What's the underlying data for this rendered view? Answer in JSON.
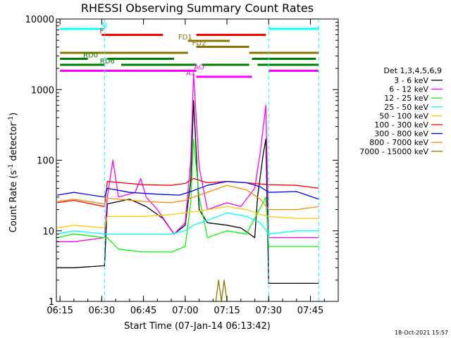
{
  "chart_data": {
    "type": "line",
    "title": "RHESSI Observing Summary Count Rates",
    "xlabel": "Start Time (07-Jan-14 06:13:42)",
    "ylabel_main": "Count Rate (s",
    "ylabel_sup1": "-1",
    "ylabel_mid": " detector",
    "ylabel_sup2": "-1",
    "ylabel_end": ")",
    "y_scale": "log",
    "ylim": [
      1,
      10000
    ],
    "xlim_minutes": [
      "06:13:42",
      "07:55:00"
    ],
    "x_ticks": [
      "06:15",
      "06:30",
      "06:45",
      "07:00",
      "07:15",
      "07:30",
      "07:45"
    ],
    "y_ticks": [
      "1",
      "10",
      "100",
      "1000",
      "10000"
    ],
    "legend_title": "Det 1,3,4,5,6,9",
    "series": [
      {
        "name": "3 - 6 keV",
        "color": "#000000",
        "points": [
          [
            "06:14",
            3
          ],
          [
            "06:20",
            3
          ],
          [
            "06:31",
            3.2
          ],
          [
            "06:32",
            24
          ],
          [
            "06:40",
            28
          ],
          [
            "06:46",
            22
          ],
          [
            "06:52",
            15
          ],
          [
            "06:56",
            9
          ],
          [
            "07:00",
            12
          ],
          [
            "07:02",
            50
          ],
          [
            "07:03",
            700
          ],
          [
            "07:05",
            20
          ],
          [
            "07:08",
            13
          ],
          [
            "07:15",
            12
          ],
          [
            "07:20",
            11
          ],
          [
            "07:25",
            8
          ],
          [
            "07:26",
            30
          ],
          [
            "07:28",
            120
          ],
          [
            "07:29",
            200
          ],
          [
            "07:30",
            1.8
          ],
          [
            "07:40",
            1.8
          ],
          [
            "07:48",
            1.8
          ]
        ]
      },
      {
        "name": "6 - 12 keV",
        "color": "#ff00ff",
        "points": [
          [
            "06:14",
            7
          ],
          [
            "06:20",
            7
          ],
          [
            "06:31",
            8
          ],
          [
            "06:32",
            30
          ],
          [
            "06:34",
            100
          ],
          [
            "06:36",
            30
          ],
          [
            "06:42",
            35
          ],
          [
            "06:44",
            55
          ],
          [
            "06:46",
            30
          ],
          [
            "06:50",
            20
          ],
          [
            "06:56",
            9
          ],
          [
            "07:00",
            13
          ],
          [
            "07:02",
            100
          ],
          [
            "07:03",
            1700
          ],
          [
            "07:05",
            80
          ],
          [
            "07:08",
            20
          ],
          [
            "07:15",
            25
          ],
          [
            "07:20",
            22
          ],
          [
            "07:25",
            40
          ],
          [
            "07:27",
            130
          ],
          [
            "07:29",
            600
          ],
          [
            "07:30",
            8
          ],
          [
            "07:40",
            8
          ],
          [
            "07:48",
            8
          ]
        ]
      },
      {
        "name": "12 - 25 keV",
        "color": "#00ff00",
        "points": [
          [
            "06:14",
            8
          ],
          [
            "06:20",
            9
          ],
          [
            "06:31",
            8
          ],
          [
            "06:32",
            8
          ],
          [
            "06:36",
            5.5
          ],
          [
            "06:45",
            5
          ],
          [
            "06:55",
            5
          ],
          [
            "07:00",
            6
          ],
          [
            "07:02",
            25
          ],
          [
            "07:03",
            200
          ],
          [
            "07:05",
            30
          ],
          [
            "07:08",
            8
          ],
          [
            "07:15",
            10
          ],
          [
            "07:22",
            9
          ],
          [
            "07:25",
            15
          ],
          [
            "07:29",
            30
          ],
          [
            "07:30",
            6
          ],
          [
            "07:40",
            6
          ],
          [
            "07:48",
            6
          ]
        ]
      },
      {
        "name": "25 - 50 keV",
        "color": "#00ffff",
        "points": [
          [
            "06:14",
            9
          ],
          [
            "06:20",
            10
          ],
          [
            "06:31",
            9
          ],
          [
            "06:32",
            9
          ],
          [
            "06:45",
            9
          ],
          [
            "06:55",
            9
          ],
          [
            "07:00",
            10
          ],
          [
            "07:03",
            12
          ],
          [
            "07:08",
            14
          ],
          [
            "07:15",
            18
          ],
          [
            "07:22",
            16
          ],
          [
            "07:27",
            13
          ],
          [
            "07:30",
            9
          ],
          [
            "07:40",
            10
          ],
          [
            "07:48",
            10
          ]
        ]
      },
      {
        "name": "50 - 100 keV",
        "color": "#ffcc00",
        "points": [
          [
            "06:14",
            11
          ],
          [
            "06:20",
            12
          ],
          [
            "06:31",
            11
          ],
          [
            "06:32",
            16
          ],
          [
            "06:45",
            16
          ],
          [
            "06:55",
            17
          ],
          [
            "07:00",
            18
          ],
          [
            "07:05",
            19
          ],
          [
            "07:15",
            22
          ],
          [
            "07:22",
            20
          ],
          [
            "07:27",
            17
          ],
          [
            "07:30",
            16
          ],
          [
            "07:40",
            15
          ],
          [
            "07:48",
            15
          ]
        ]
      },
      {
        "name": "100 - 300 keV",
        "color": "#ff0000",
        "points": [
          [
            "06:14",
            25
          ],
          [
            "06:20",
            27
          ],
          [
            "06:31",
            22
          ],
          [
            "06:32",
            50
          ],
          [
            "06:45",
            45
          ],
          [
            "06:55",
            44
          ],
          [
            "07:00",
            47
          ],
          [
            "07:03",
            55
          ],
          [
            "07:08",
            48
          ],
          [
            "07:15",
            50
          ],
          [
            "07:22",
            48
          ],
          [
            "07:27",
            46
          ],
          [
            "07:30",
            45
          ],
          [
            "07:40",
            44
          ],
          [
            "07:48",
            40
          ]
        ]
      },
      {
        "name": "300 - 800 keV",
        "color": "#0000ff",
        "points": [
          [
            "06:14",
            32
          ],
          [
            "06:20",
            35
          ],
          [
            "06:31",
            30
          ],
          [
            "06:32",
            40
          ],
          [
            "06:40",
            35
          ],
          [
            "06:50",
            33
          ],
          [
            "06:58",
            32
          ],
          [
            "07:02",
            36
          ],
          [
            "07:08",
            44
          ],
          [
            "07:15",
            50
          ],
          [
            "07:22",
            48
          ],
          [
            "07:27",
            42
          ],
          [
            "07:30",
            35
          ],
          [
            "07:40",
            36
          ],
          [
            "07:48",
            28
          ]
        ]
      },
      {
        "name": "800 - 7000 keV",
        "color": "#ff8800",
        "points": [
          [
            "06:14",
            26
          ],
          [
            "06:20",
            28
          ],
          [
            "06:31",
            24
          ],
          [
            "06:32",
            29
          ],
          [
            "06:45",
            26
          ],
          [
            "06:55",
            25
          ],
          [
            "07:00",
            27
          ],
          [
            "07:05",
            32
          ],
          [
            "07:15",
            44
          ],
          [
            "07:22",
            38
          ],
          [
            "07:27",
            28
          ],
          [
            "07:30",
            20
          ],
          [
            "07:40",
            20
          ],
          [
            "07:48",
            22
          ]
        ]
      },
      {
        "name": "7000 - 15000 keV",
        "color": "#8b7500",
        "points": [
          [
            "07:11",
            1
          ],
          [
            "07:12",
            2
          ],
          [
            "07:13",
            1
          ],
          [
            "07:14",
            2
          ],
          [
            "07:15",
            1
          ]
        ]
      }
    ],
    "obs_flags": [
      {
        "label": "N",
        "color": "#00ffff",
        "segments": [
          [
            "06:15",
            "06:31"
          ],
          [
            "07:30",
            "07:48"
          ]
        ],
        "label_at": "06:31",
        "level": 0
      },
      {
        "label": "F",
        "color": "#ff0000",
        "segments": [
          [
            "06:30",
            "06:52"
          ],
          [
            "07:04",
            "07:29"
          ]
        ],
        "label_at": "06:30",
        "level": 1
      },
      {
        "label": "FD1",
        "color": "#8b7500",
        "segments": [
          [
            "07:01",
            "07:16"
          ]
        ],
        "label_at": "07:00",
        "level": 2
      },
      {
        "label": "FD2",
        "color": "#8b7500",
        "segments": [
          [
            "07:04",
            "07:23"
          ]
        ],
        "label_at": "07:05",
        "level": 3
      },
      {
        "label": "",
        "color": "#8b7500",
        "segments": [
          [
            "06:15",
            "07:01"
          ],
          [
            "07:23",
            "07:48"
          ]
        ],
        "label_at": "",
        "level": 4
      },
      {
        "label": "RD0",
        "color": "#008000",
        "segments": [
          [
            "06:15",
            "06:25"
          ],
          [
            "06:32",
            "06:56"
          ],
          [
            "07:24",
            "07:47"
          ]
        ],
        "label_at": "06:26",
        "level": 5
      },
      {
        "label": "RD6",
        "color": "#008000",
        "segments": [
          [
            "06:15",
            "06:31"
          ],
          [
            "06:37",
            "07:04"
          ],
          [
            "07:06",
            "07:23"
          ],
          [
            "07:26",
            "07:48"
          ]
        ],
        "label_at": "06:32",
        "level": 6
      },
      {
        "label": "AO",
        "color": "#ff00ff",
        "segments": [
          [
            "06:15",
            "07:04"
          ],
          [
            "07:30",
            "07:48"
          ]
        ],
        "label_at": "07:05",
        "level": 7
      },
      {
        "label": "A1",
        "color": "#ff00ff",
        "segments": [
          [
            "07:04",
            "07:24"
          ]
        ],
        "label_at": "07:02",
        "level": 8
      }
    ],
    "vlines": [
      "06:31",
      "07:30",
      "07:48"
    ],
    "grid": false,
    "legend_position": "right"
  },
  "footer": {
    "date": "18-Oct-2021 15:57"
  }
}
